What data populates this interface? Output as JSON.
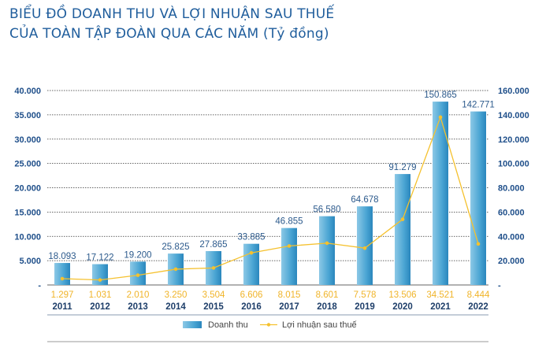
{
  "chart_data": {
    "type": "bar+line",
    "title": [
      "BIỂU ĐỒ DOANH THU VÀ LỢI NHUẬN SAU THUẾ",
      "CỦA TOÀN TẬP ĐOÀN QUA CÁC NĂM (Tỷ đồng)"
    ],
    "categories": [
      "2011",
      "2012",
      "2013",
      "2014",
      "2015",
      "2016",
      "2017",
      "2018",
      "2019",
      "2020",
      "2021",
      "2022"
    ],
    "series": [
      {
        "name": "Doanh thu",
        "type": "bar",
        "axis": "right",
        "color": "#3d9bcc",
        "values": [
          18093,
          17122,
          19200,
          25825,
          27865,
          33885,
          46855,
          56580,
          64678,
          91279,
          150865,
          142771
        ],
        "labels": [
          "18.093",
          "17.122",
          "19.200",
          "25.825",
          "27.865",
          "33.885",
          "46.855",
          "56.580",
          "64.678",
          "91.279",
          "150.865",
          "142.771"
        ]
      },
      {
        "name": "Lợi nhuận sau thuế",
        "type": "line",
        "axis": "left",
        "color": "#f5c12e",
        "values": [
          1297,
          1031,
          2010,
          3250,
          3504,
          6606,
          8015,
          8601,
          7578,
          13506,
          34521,
          8444
        ],
        "labels": [
          "1.297",
          "1.031",
          "2.010",
          "3.250",
          "3.504",
          "6.606",
          "8.015",
          "8.601",
          "7.578",
          "13.506",
          "34.521",
          "8.444"
        ]
      }
    ],
    "left_axis": {
      "ylim": [
        0,
        40000
      ],
      "ticks": [
        "-",
        "5.000",
        "10.000",
        "15.000",
        "20.000",
        "25.000",
        "30.000",
        "35.000",
        "40.000"
      ]
    },
    "right_axis": {
      "ylim": [
        0,
        160000
      ],
      "ticks": [
        "-",
        "20.000",
        "40.000",
        "60.000",
        "80.000",
        "100.000",
        "120.000",
        "140.000",
        "160.000"
      ]
    },
    "grid": true,
    "legend": "bottom"
  }
}
